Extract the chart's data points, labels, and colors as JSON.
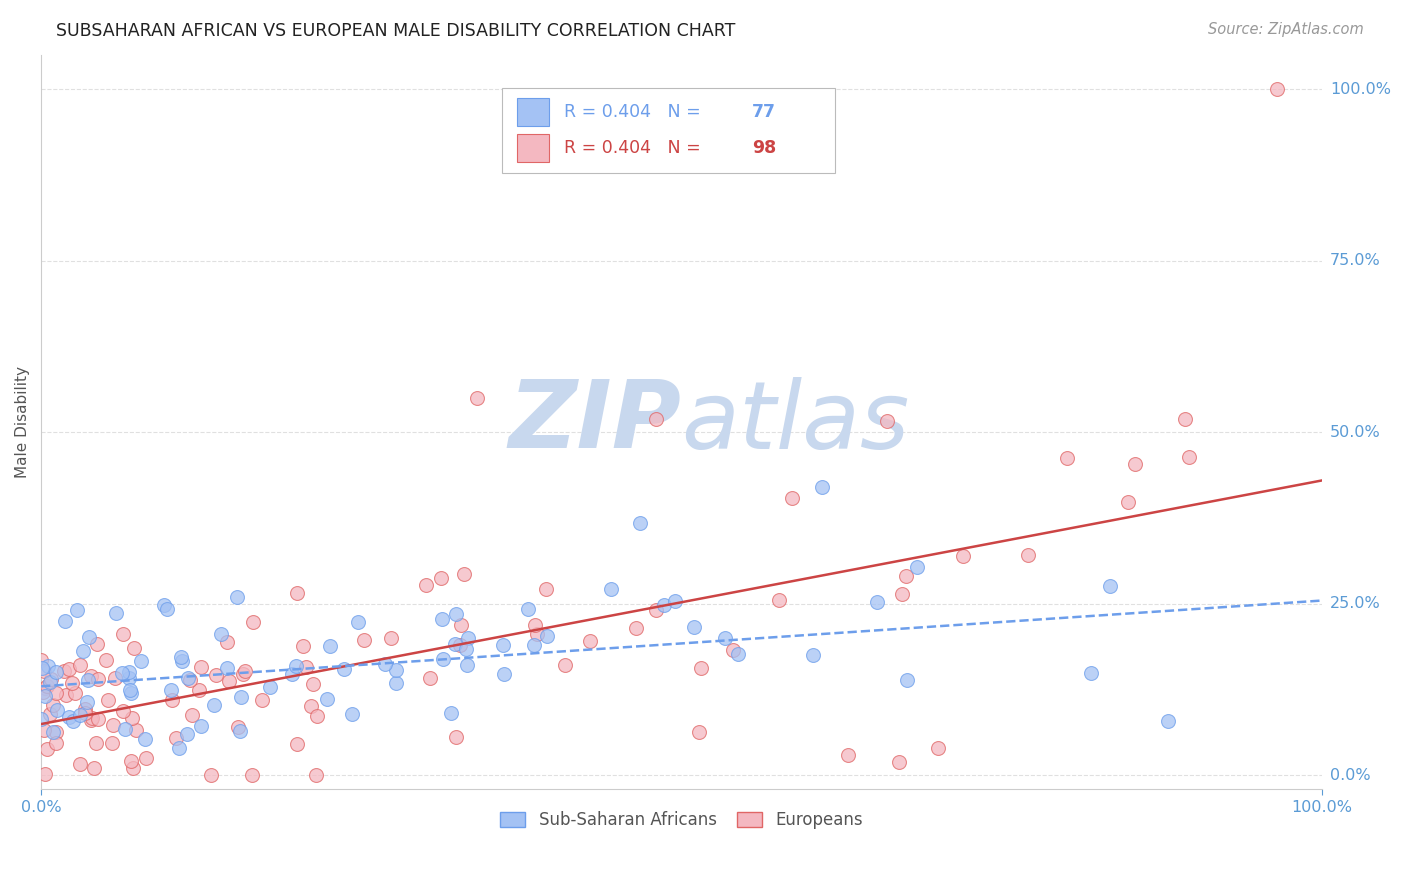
{
  "title": "SUBSAHARAN AFRICAN VS EUROPEAN MALE DISABILITY CORRELATION CHART",
  "source": "Source: ZipAtlas.com",
  "ylabel": "Male Disability",
  "ytick_labels": [
    "0.0%",
    "25.0%",
    "50.0%",
    "75.0%",
    "100.0%"
  ],
  "ytick_values": [
    0.0,
    0.25,
    0.5,
    0.75,
    1.0
  ],
  "xlim": [
    0.0,
    1.0
  ],
  "ylim": [
    -0.02,
    1.05
  ],
  "blue_R": 0.404,
  "blue_N": 77,
  "pink_R": 0.404,
  "pink_N": 98,
  "blue_label": "Sub-Saharan Africans",
  "pink_label": "Europeans",
  "blue_scatter_color": "#a4c2f4",
  "pink_scatter_color": "#f4b8c1",
  "blue_edge_color": "#6d9eeb",
  "pink_edge_color": "#e06666",
  "blue_line_color": "#6d9eeb",
  "pink_line_color": "#cc4444",
  "legend_blue_color": "#6d9eeb",
  "legend_pink_color": "#cc4444",
  "watermark_color": "#d6e4f7",
  "title_color": "#222222",
  "axis_label_color": "#555555",
  "ytick_color": "#5b9bd5",
  "xtick_color": "#5b9bd5",
  "grid_color": "#e0e0e0",
  "background_color": "#ffffff",
  "blue_intercept": 0.13,
  "blue_slope": 0.125,
  "pink_intercept": 0.075,
  "pink_slope": 0.355,
  "seed": 42
}
